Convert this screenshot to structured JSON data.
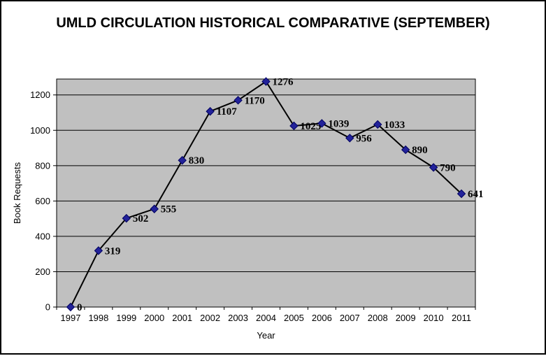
{
  "title": "UMLD CIRCULATION HISTORICAL COMPARATIVE (SEPTEMBER)",
  "chart_data": {
    "type": "line",
    "title": "UMLD CIRCULATION HISTORICAL COMPARATIVE (SEPTEMBER)",
    "categories": [
      "1997",
      "1998",
      "1999",
      "2000",
      "2001",
      "2002",
      "2003",
      "2004",
      "2005",
      "2006",
      "2007",
      "2008",
      "2009",
      "2010",
      "2011"
    ],
    "values": [
      0,
      319,
      502,
      555,
      830,
      1107,
      1170,
      1276,
      1025,
      1039,
      956,
      1033,
      890,
      790,
      641
    ],
    "data_labels": [
      "0",
      "319",
      "502",
      "555",
      "830",
      "1107",
      "1170",
      "1276",
      "1025",
      "1039",
      "956",
      "1033",
      "890",
      "790",
      "641"
    ],
    "xlabel": "Year",
    "ylabel": "Book Requests",
    "ylim": [
      0,
      1290
    ],
    "yticks": [
      0,
      200,
      400,
      600,
      800,
      1000,
      1200
    ],
    "ytick_labels": [
      "0",
      "200",
      "400",
      "600",
      "800",
      "1000",
      "1200"
    ],
    "grid": true,
    "legend": false,
    "colors": {
      "plot_background": "#c0c0c0",
      "gridline": "#000000",
      "line": "#000000",
      "marker_fill": "#22229a",
      "marker_stroke": "#000060",
      "text": "#000000",
      "outer_border": "#000000"
    }
  }
}
